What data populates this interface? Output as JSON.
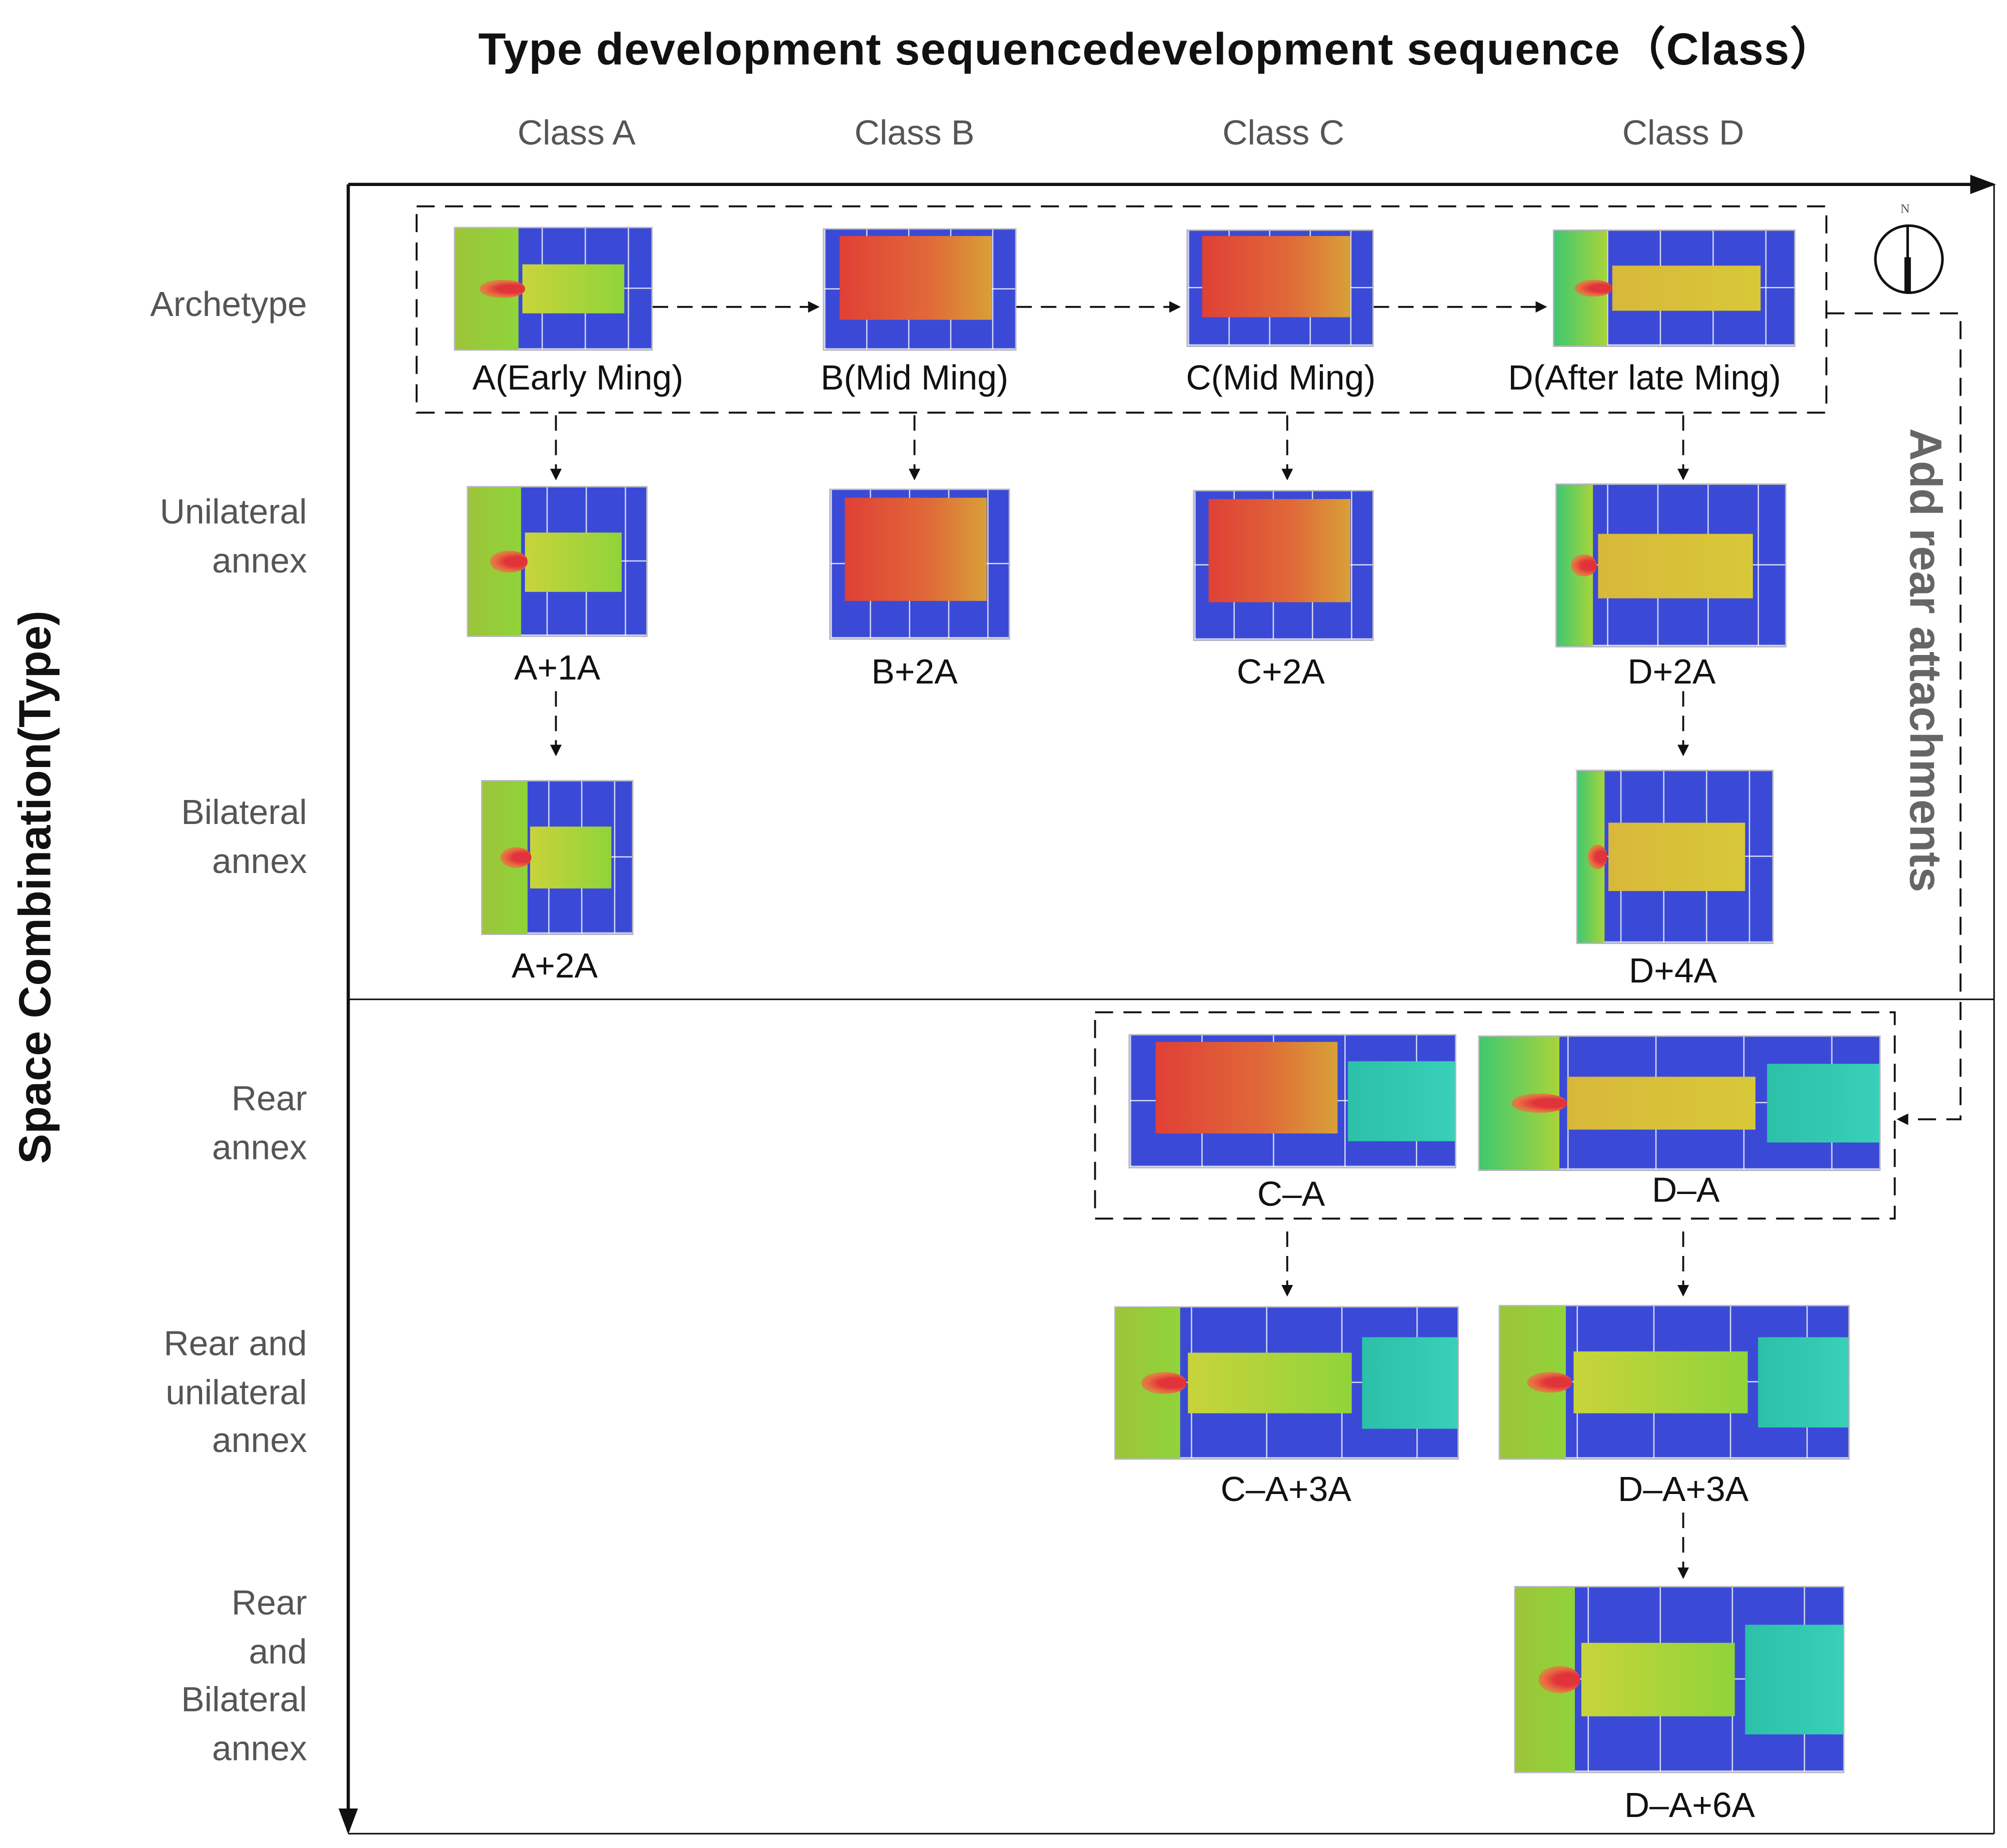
{
  "title": "Type development sequencedevelopment sequence（Class）",
  "y_axis_label": "Space Combination(Type)",
  "side_label": "Add rear attachments",
  "compass_label": "N",
  "classes": [
    "Class A",
    "Class B",
    "Class C",
    "Class D"
  ],
  "rows": [
    {
      "lines": [
        "Archetype"
      ]
    },
    {
      "lines": [
        "Unilateral",
        "annex"
      ]
    },
    {
      "lines": [
        "Bilateral",
        "annex"
      ]
    },
    {
      "lines": [
        "Rear",
        "annex"
      ]
    },
    {
      "lines": [
        "Rear and",
        "unilateral",
        "annex"
      ]
    },
    {
      "lines": [
        "Rear",
        "and",
        "Bilateral",
        "annex"
      ]
    }
  ],
  "plans": [
    {
      "label": "A(Early Ming)",
      "variant": "green"
    },
    {
      "label": "B(Mid Ming)",
      "variant": "red"
    },
    {
      "label": "C(Mid Ming)",
      "variant": "red"
    },
    {
      "label": "D(After late Ming)",
      "variant": "yellow"
    },
    {
      "label": "A+1A",
      "variant": "green"
    },
    {
      "label": "B+2A",
      "variant": "red"
    },
    {
      "label": "C+2A",
      "variant": "red"
    },
    {
      "label": "D+2A",
      "variant": "yellow"
    },
    {
      "label": "A+2A",
      "variant": "green"
    },
    {
      "label": "D+4A",
      "variant": "yellow"
    },
    {
      "label": "C–A",
      "variant": "red"
    },
    {
      "label": "D–A",
      "variant": "yellow"
    },
    {
      "label": "C–A+3A",
      "variant": "green"
    },
    {
      "label": "D–A+3A",
      "variant": "green"
    },
    {
      "label": "D–A+6A",
      "variant": "green"
    }
  ]
}
